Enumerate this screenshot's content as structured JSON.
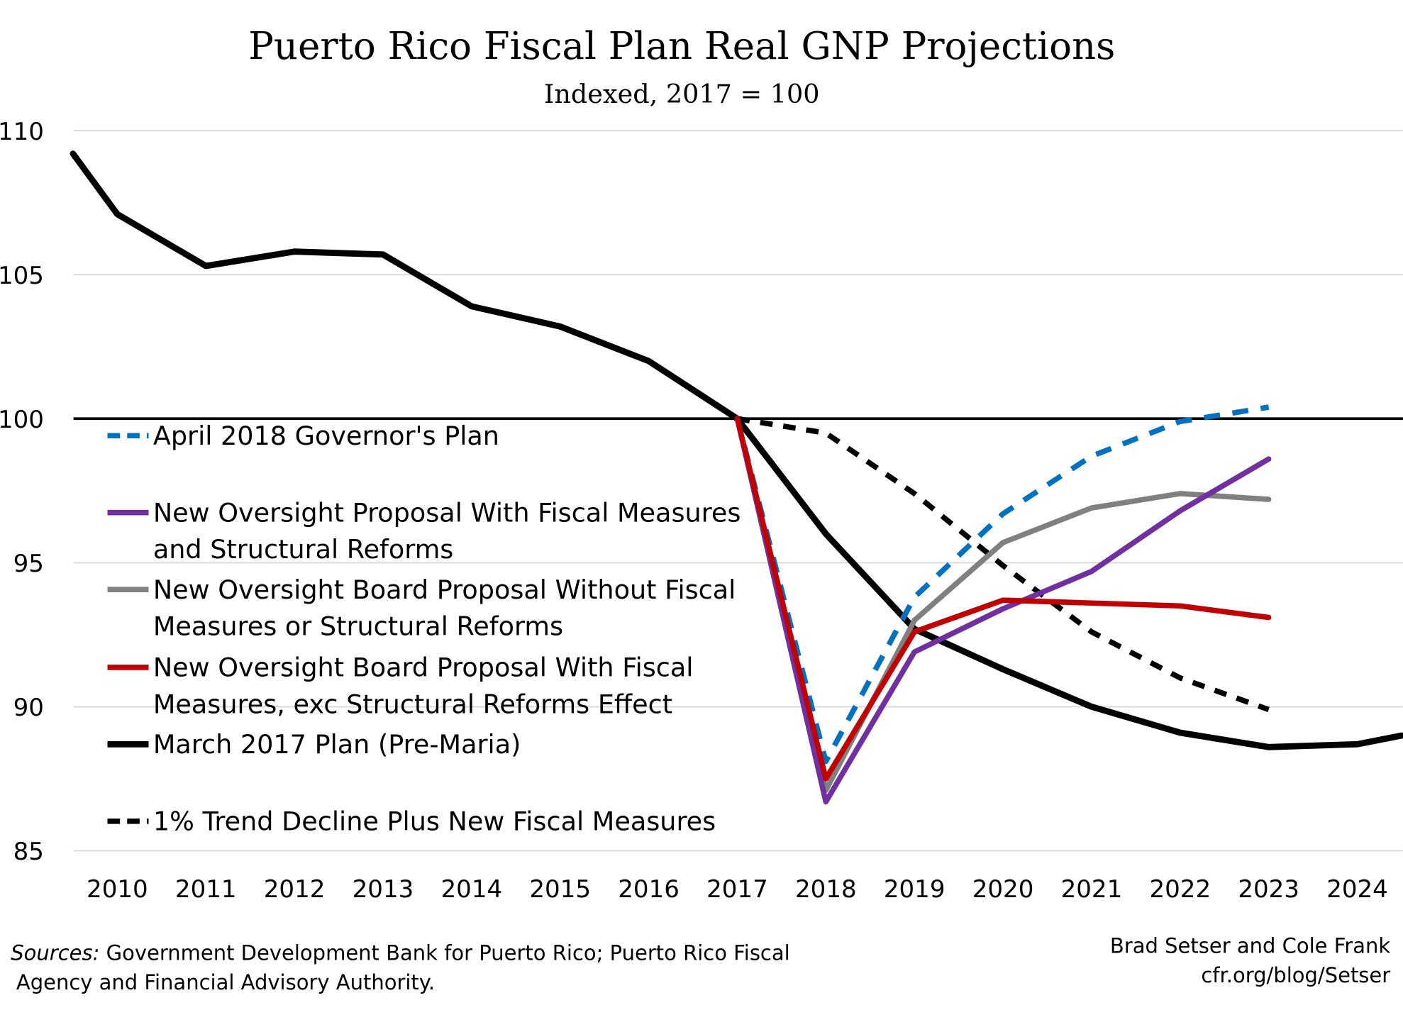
{
  "chart_data": {
    "type": "line",
    "title": "Puerto Rico Fiscal Plan Real GNP Projections",
    "subtitle": "Indexed, 2017 = 100",
    "xlabel": "",
    "ylabel": "",
    "ylim": [
      85,
      110
    ],
    "xlim": [
      2009.5,
      2024.5
    ],
    "yticks": [
      85,
      90,
      95,
      100,
      105,
      110
    ],
    "xticks": [
      2010,
      2011,
      2012,
      2013,
      2014,
      2015,
      2016,
      2017,
      2018,
      2019,
      2020,
      2021,
      2022,
      2023,
      2024
    ],
    "grid": "horizontal",
    "reference_line": 100,
    "legend_placement": "left",
    "series": [
      {
        "name": "April 2018 Governor's Plan",
        "color": "#0070C0",
        "dash": true,
        "x": [
          2017,
          2018,
          2019,
          2020,
          2021,
          2022,
          2023
        ],
        "values": [
          100,
          88.1,
          93.8,
          96.7,
          98.7,
          99.9,
          100.4
        ]
      },
      {
        "name": "New Oversight Proposal With Fiscal Measures and Structural Reforms",
        "name_lines": [
          "New Oversight Proposal With Fiscal Measures",
          "and Structural Reforms"
        ],
        "color": "#7030A0",
        "dash": false,
        "x": [
          2017,
          2018,
          2019,
          2020,
          2021,
          2022,
          2023
        ],
        "values": [
          100,
          86.7,
          91.9,
          93.4,
          94.7,
          96.8,
          98.6
        ]
      },
      {
        "name": "New Oversight Board Proposal Without Fiscal Measures or Structural Reforms",
        "name_lines": [
          "New Oversight Board Proposal Without Fiscal",
          "Measures or Structural Reforms"
        ],
        "color": "#808080",
        "dash": false,
        "x": [
          2017,
          2018,
          2019,
          2020,
          2021,
          2022,
          2023
        ],
        "values": [
          100,
          87.1,
          93.0,
          95.7,
          96.9,
          97.4,
          97.2
        ]
      },
      {
        "name": "New Oversight Board Proposal With Fiscal Measures, exc Structural Reforms Effect",
        "name_lines": [
          "New Oversight Board Proposal With Fiscal",
          "Measures, exc Structural Reforms Effect"
        ],
        "color": "#C00000",
        "dash": false,
        "x": [
          2017,
          2018,
          2019,
          2020,
          2021,
          2022,
          2023
        ],
        "values": [
          100,
          87.5,
          92.6,
          93.7,
          93.6,
          93.5,
          93.1
        ]
      },
      {
        "name": "March 2017 Plan (Pre-Maria)",
        "color": "#000000",
        "dash": false,
        "x": [
          2009.5,
          2010,
          2011,
          2012,
          2013,
          2014,
          2015,
          2016,
          2017,
          2018,
          2019,
          2020,
          2021,
          2022,
          2023,
          2024,
          2024.5
        ],
        "values": [
          109.2,
          107.1,
          105.3,
          105.8,
          105.7,
          103.9,
          103.2,
          102.0,
          100,
          96.0,
          92.7,
          91.3,
          90.0,
          89.1,
          88.6,
          88.7,
          89.0
        ]
      },
      {
        "name": "1% Trend Decline Plus New Fiscal Measures",
        "color": "#000000",
        "dash": true,
        "x": [
          2017,
          2018,
          2019,
          2020,
          2021,
          2022,
          2023
        ],
        "values": [
          100,
          99.5,
          97.4,
          94.9,
          92.6,
          91.0,
          89.9
        ]
      }
    ]
  },
  "footer": {
    "sources_label": "Sources:",
    "sources_line1": " Government Development Bank for Puerto Rico; Puerto Rico Fiscal",
    "sources_line2": "Agency and Financial Advisory Authority.",
    "credit_line1": "Brad Setser and Cole Frank",
    "credit_line2": "cfr.org/blog/Setser"
  }
}
